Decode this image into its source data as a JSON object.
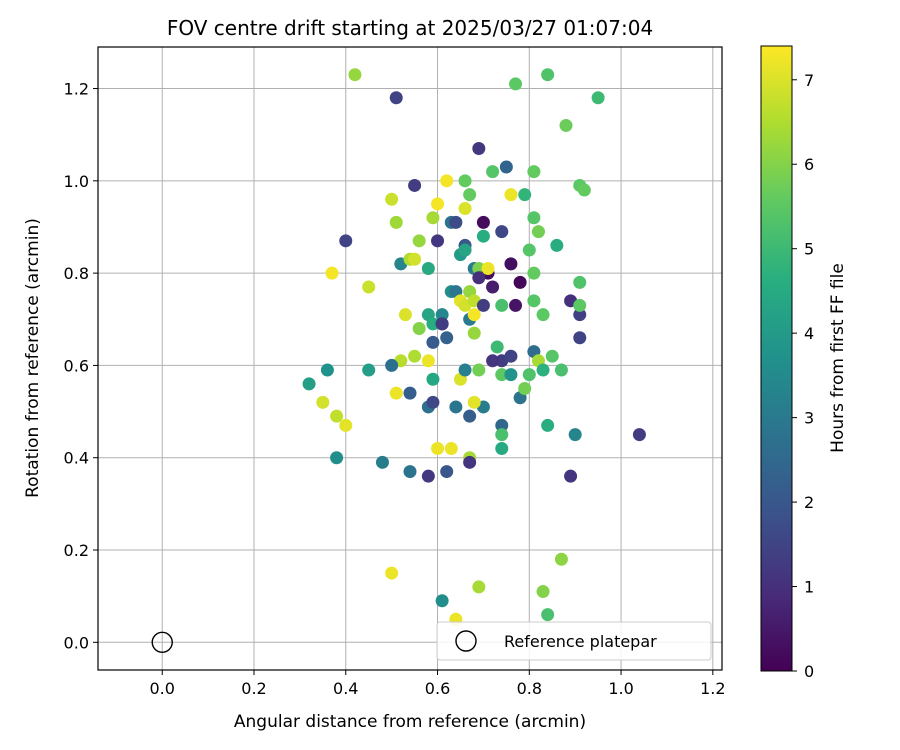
{
  "chart_data": {
    "type": "scatter",
    "title": "FOV centre drift starting at 2025/03/27 01:07:04",
    "xlabel": "Angular distance from reference (arcmin)",
    "ylabel": "Rotation from reference (arcmin)",
    "xlim": [
      -0.14,
      1.22
    ],
    "ylim": [
      -0.06,
      1.29
    ],
    "xticks": [
      "0.0",
      "0.2",
      "0.4",
      "0.6",
      "0.8",
      "1.0",
      "1.2"
    ],
    "yticks": [
      "0.0",
      "0.2",
      "0.4",
      "0.6",
      "0.8",
      "1.0",
      "1.2"
    ],
    "grid": true,
    "legend": {
      "label": "Reference platepar",
      "placement": "lower-right"
    },
    "reference_point": {
      "x": 0.0,
      "y": 0.0
    },
    "colorbar": {
      "label": "Hours from first FF file",
      "min": 0,
      "max": 7.4,
      "ticks": [
        "0",
        "1",
        "2",
        "3",
        "4",
        "5",
        "6",
        "7"
      ],
      "colormap": "viridis"
    },
    "points": [
      [
        0.42,
        1.23,
        6.2
      ],
      [
        0.51,
        1.18,
        1.5
      ],
      [
        0.77,
        1.21,
        5.5
      ],
      [
        0.84,
        1.23,
        5.3
      ],
      [
        0.95,
        1.18,
        5.0
      ],
      [
        0.69,
        1.07,
        1.2
      ],
      [
        0.75,
        1.03,
        2.4
      ],
      [
        0.88,
        1.12,
        5.7
      ],
      [
        0.55,
        0.99,
        1.3
      ],
      [
        0.62,
        1.0,
        7.3
      ],
      [
        0.66,
        1.0,
        5.6
      ],
      [
        0.72,
        1.02,
        5.4
      ],
      [
        0.81,
        1.02,
        5.6
      ],
      [
        0.91,
        0.99,
        5.5
      ],
      [
        0.92,
        0.98,
        5.6
      ],
      [
        0.5,
        0.96,
        6.8
      ],
      [
        0.67,
        0.97,
        5.6
      ],
      [
        0.76,
        0.97,
        7.2
      ],
      [
        0.79,
        0.97,
        4.8
      ],
      [
        0.51,
        0.91,
        6.3
      ],
      [
        0.59,
        0.92,
        6.4
      ],
      [
        0.6,
        0.95,
        7.3
      ],
      [
        0.63,
        0.91,
        2.8
      ],
      [
        0.64,
        0.91,
        1.7
      ],
      [
        0.66,
        0.94,
        7.0
      ],
      [
        0.7,
        0.91,
        0.2
      ],
      [
        0.7,
        0.88,
        4.6
      ],
      [
        0.74,
        0.89,
        1.6
      ],
      [
        0.81,
        0.92,
        5.4
      ],
      [
        0.82,
        0.89,
        5.8
      ],
      [
        0.4,
        0.87,
        1.5
      ],
      [
        0.52,
        0.82,
        3.3
      ],
      [
        0.54,
        0.83,
        6.5
      ],
      [
        0.55,
        0.83,
        6.9
      ],
      [
        0.56,
        0.87,
        6.2
      ],
      [
        0.58,
        0.81,
        4.5
      ],
      [
        0.6,
        0.87,
        1.2
      ],
      [
        0.65,
        0.84,
        4.0
      ],
      [
        0.66,
        0.86,
        2.0
      ],
      [
        0.66,
        0.85,
        4.3
      ],
      [
        0.68,
        0.81,
        3.0
      ],
      [
        0.69,
        0.81,
        5.9
      ],
      [
        0.71,
        0.8,
        0.2
      ],
      [
        0.71,
        0.81,
        7.2
      ],
      [
        0.76,
        0.82,
        0.3
      ],
      [
        0.8,
        0.85,
        5.4
      ],
      [
        0.81,
        0.8,
        5.6
      ],
      [
        0.86,
        0.86,
        4.6
      ],
      [
        0.37,
        0.8,
        7.3
      ],
      [
        0.45,
        0.77,
        6.8
      ],
      [
        0.53,
        0.71,
        7.0
      ],
      [
        0.56,
        0.68,
        6.0
      ],
      [
        0.58,
        0.71,
        4.3
      ],
      [
        0.59,
        0.69,
        4.6
      ],
      [
        0.61,
        0.71,
        3.4
      ],
      [
        0.61,
        0.69,
        1.5
      ],
      [
        0.63,
        0.76,
        3.6
      ],
      [
        0.64,
        0.76,
        2.9
      ],
      [
        0.65,
        0.74,
        7.1
      ],
      [
        0.66,
        0.73,
        6.9
      ],
      [
        0.67,
        0.76,
        6.2
      ],
      [
        0.67,
        0.7,
        3.0
      ],
      [
        0.68,
        0.74,
        6.7
      ],
      [
        0.68,
        0.71,
        7.3
      ],
      [
        0.69,
        0.79,
        1.0
      ],
      [
        0.7,
        0.73,
        1.3
      ],
      [
        0.72,
        0.77,
        0.6
      ],
      [
        0.74,
        0.73,
        5.2
      ],
      [
        0.77,
        0.73,
        0.4
      ],
      [
        0.78,
        0.78,
        0.1
      ],
      [
        0.81,
        0.74,
        5.4
      ],
      [
        0.83,
        0.71,
        5.5
      ],
      [
        0.89,
        0.74,
        1.0
      ],
      [
        0.91,
        0.71,
        1.4
      ],
      [
        0.91,
        0.78,
        5.3
      ],
      [
        0.91,
        0.73,
        5.5
      ],
      [
        0.91,
        0.66,
        1.5
      ],
      [
        0.52,
        0.61,
        6.6
      ],
      [
        0.55,
        0.62,
        6.5
      ],
      [
        0.58,
        0.61,
        7.2
      ],
      [
        0.59,
        0.65,
        2.1
      ],
      [
        0.61,
        0.69,
        1.3
      ],
      [
        0.62,
        0.66,
        2.3
      ],
      [
        0.68,
        0.67,
        6.2
      ],
      [
        0.73,
        0.64,
        5.0
      ],
      [
        0.74,
        0.61,
        1.3
      ],
      [
        0.76,
        0.62,
        1.5
      ],
      [
        0.81,
        0.63,
        2.6
      ],
      [
        0.82,
        0.61,
        6.4
      ],
      [
        0.85,
        0.62,
        5.4
      ],
      [
        0.32,
        0.56,
        4.1
      ],
      [
        0.36,
        0.59,
        3.7
      ],
      [
        0.45,
        0.59,
        4.1
      ],
      [
        0.5,
        0.6,
        2.7
      ],
      [
        0.51,
        0.54,
        7.2
      ],
      [
        0.54,
        0.54,
        2.2
      ],
      [
        0.58,
        0.51,
        2.7
      ],
      [
        0.59,
        0.57,
        4.4
      ],
      [
        0.59,
        0.52,
        1.6
      ],
      [
        0.64,
        0.51,
        2.9
      ],
      [
        0.65,
        0.57,
        7.0
      ],
      [
        0.66,
        0.59,
        3.2
      ],
      [
        0.69,
        0.59,
        5.8
      ],
      [
        0.7,
        0.51,
        3.1
      ],
      [
        0.72,
        0.61,
        1.1
      ],
      [
        0.74,
        0.58,
        5.5
      ],
      [
        0.76,
        0.58,
        3.8
      ],
      [
        0.78,
        0.53,
        2.8
      ],
      [
        0.79,
        0.55,
        5.8
      ],
      [
        0.8,
        0.58,
        5.3
      ],
      [
        0.83,
        0.59,
        4.7
      ],
      [
        0.87,
        0.59,
        5.2
      ],
      [
        0.35,
        0.52,
        6.9
      ],
      [
        0.38,
        0.49,
        6.7
      ],
      [
        0.4,
        0.47,
        7.1
      ],
      [
        0.38,
        0.4,
        3.6
      ],
      [
        0.48,
        0.39,
        3.1
      ],
      [
        0.54,
        0.37,
        2.8
      ],
      [
        0.58,
        0.36,
        1.2
      ],
      [
        0.6,
        0.42,
        7.2
      ],
      [
        0.62,
        0.37,
        2.0
      ],
      [
        0.63,
        0.42,
        7.2
      ],
      [
        0.67,
        0.4,
        6.4
      ],
      [
        0.67,
        0.39,
        1.1
      ],
      [
        0.67,
        0.49,
        2.2
      ],
      [
        0.68,
        0.52,
        7.1
      ],
      [
        0.74,
        0.47,
        2.5
      ],
      [
        0.74,
        0.45,
        5.2
      ],
      [
        0.74,
        0.42,
        4.5
      ],
      [
        0.84,
        0.47,
        4.6
      ],
      [
        0.89,
        0.36,
        1.1
      ],
      [
        0.9,
        0.45,
        3.3
      ],
      [
        1.04,
        0.45,
        1.3
      ],
      [
        0.5,
        0.15,
        7.2
      ],
      [
        0.61,
        0.09,
        3.6
      ],
      [
        0.64,
        0.05,
        7.2
      ],
      [
        0.69,
        0.12,
        6.4
      ],
      [
        0.83,
        0.11,
        6.0
      ],
      [
        0.84,
        0.06,
        5.2
      ],
      [
        0.87,
        0.18,
        6.1
      ]
    ]
  }
}
